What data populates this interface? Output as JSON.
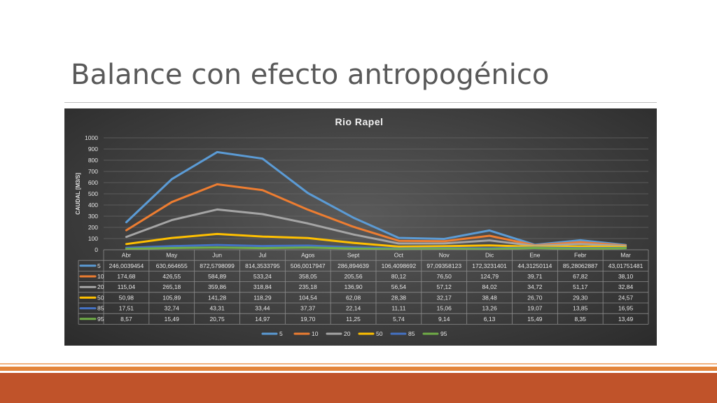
{
  "slide": {
    "title": "Balance con efecto antropogénico"
  },
  "colors": {
    "s5": "#5b9bd5",
    "s10": "#ed7d31",
    "s20": "#a5a5a5",
    "s50": "#ffc000",
    "s85": "#4472c4",
    "s95": "#70ad47"
  },
  "chart_data": {
    "type": "line",
    "title": "Rio Rapel",
    "ylabel": "CAUDAL [M3/S]",
    "xlabel": "",
    "ylim": [
      0,
      1000
    ],
    "yticks": [
      0,
      100,
      200,
      300,
      400,
      500,
      600,
      700,
      800,
      900,
      1000
    ],
    "grid": true,
    "legend": "bottom",
    "categories": [
      "Abr",
      "May",
      "Jun",
      "Jul",
      "Agos",
      "Sept",
      "Oct",
      "Nov",
      "Dic",
      "Ene",
      "Febr",
      "Mar"
    ],
    "series": [
      {
        "name": "5",
        "color": "#5b9bd5",
        "values": [
          246.0039454,
          630.664655,
          872.5798099,
          814.3533795,
          506.0017947,
          286.894639,
          106.4098692,
          97.09358123,
          172.3231401,
          44.31250114,
          85.28062887,
          43.01751481
        ],
        "labels": [
          "246,0039454",
          "630,664655",
          "872,5798099",
          "814,3533795",
          "506,0017947",
          "286,894639",
          "106,4098692",
          "97,09358123",
          "172,3231401",
          "44,31250114",
          "85,28062887",
          "43,01751481"
        ]
      },
      {
        "name": "10",
        "color": "#ed7d31",
        "values": [
          174.68,
          426.55,
          584.89,
          533.24,
          358.05,
          205.56,
          80.12,
          76.5,
          124.79,
          39.71,
          67.82,
          38.1
        ],
        "labels": [
          "174,68",
          "426,55",
          "584,89",
          "533,24",
          "358,05",
          "205,56",
          "80,12",
          "76,50",
          "124,79",
          "39,71",
          "67,82",
          "38,10"
        ]
      },
      {
        "name": "20",
        "color": "#a5a5a5",
        "values": [
          115.04,
          265.18,
          359.86,
          318.84,
          235.18,
          136.9,
          56.54,
          57.12,
          84.02,
          34.72,
          51.17,
          32.84
        ],
        "labels": [
          "115,04",
          "265,18",
          "359,86",
          "318,84",
          "235,18",
          "136,90",
          "56,54",
          "57,12",
          "84,02",
          "34,72",
          "51,17",
          "32,84"
        ]
      },
      {
        "name": "50",
        "color": "#ffc000",
        "values": [
          50.98,
          105.89,
          141.28,
          118.29,
          104.54,
          62.08,
          28.38,
          32.17,
          38.48,
          26.7,
          29.3,
          24.57
        ],
        "labels": [
          "50,98",
          "105,89",
          "141,28",
          "118,29",
          "104,54",
          "62,08",
          "28,38",
          "32,17",
          "38,48",
          "26,70",
          "29,30",
          "24,57"
        ]
      },
      {
        "name": "85",
        "color": "#4472c4",
        "values": [
          17.51,
          32.74,
          43.31,
          33.44,
          37.37,
          22.14,
          11.11,
          15.06,
          13.26,
          19.07,
          13.85,
          16.95
        ],
        "labels": [
          "17,51",
          "32,74",
          "43,31",
          "33,44",
          "37,37",
          "22,14",
          "11,11",
          "15,06",
          "13,26",
          "19,07",
          "13,85",
          "16,95"
        ]
      },
      {
        "name": "95",
        "color": "#70ad47",
        "values": [
          8.57,
          15.49,
          20.75,
          14.97,
          19.7,
          11.25,
          5.74,
          9.14,
          6.13,
          15.49,
          8.35,
          13.49
        ],
        "labels": [
          "8,57",
          "15,49",
          "20,75",
          "14,97",
          "19,70",
          "11,25",
          "5,74",
          "9,14",
          "6,13",
          "15,49",
          "8,35",
          "13,49"
        ]
      }
    ]
  }
}
